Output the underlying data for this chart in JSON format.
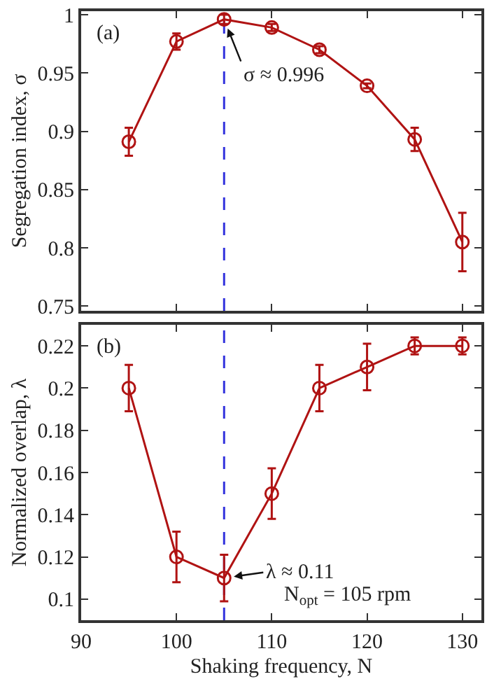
{
  "chart_data": [
    {
      "type": "line",
      "ylabel": "Segregation index, σ",
      "x": [
        95,
        100,
        105,
        110,
        115,
        120,
        125,
        130
      ],
      "series": [
        {
          "color": "#b01313",
          "values": [
            0.891,
            0.977,
            0.996,
            0.989,
            0.97,
            0.939,
            0.893,
            0.805
          ],
          "errors": [
            0.012,
            0.007,
            0.004,
            0.003,
            0.003,
            0.002,
            0.01,
            0.025
          ]
        }
      ],
      "xlim": [
        90,
        132
      ],
      "xticks": [
        90,
        100,
        110,
        120,
        130
      ],
      "ylim": [
        0.746,
        1.003
      ],
      "yticks": [
        0.75,
        0.8,
        0.85,
        0.9,
        0.95,
        1
      ],
      "tick_labels": "y",
      "marker": "circle",
      "line_style": "solid",
      "grid": false,
      "ref_lines": [
        {
          "axis": "x",
          "value": 105,
          "label": null,
          "color": "#3333dd",
          "line_style": "dashed"
        }
      ],
      "annotations": [
        "(a)",
        {
          "text": "σ ≈ 0.996",
          "x": 105,
          "y": 0.996
        }
      ]
    },
    {
      "type": "line",
      "xlabel": "Shaking frequency, N",
      "ylabel": "Normalized overlap, λ",
      "x": [
        95,
        100,
        105,
        110,
        115,
        120,
        125,
        130
      ],
      "series": [
        {
          "color": "#b01313",
          "values": [
            0.2,
            0.12,
            0.11,
            0.15,
            0.2,
            0.21,
            0.22,
            0.22
          ],
          "errors": [
            0.011,
            0.012,
            0.011,
            0.012,
            0.011,
            0.011,
            0.004,
            0.004
          ]
        }
      ],
      "xlim": [
        90,
        132
      ],
      "xticks": [
        90,
        100,
        110,
        120,
        130
      ],
      "ylim": [
        0.09,
        0.23
      ],
      "yticks": [
        0.1,
        0.12,
        0.14,
        0.16,
        0.18,
        0.2,
        0.22
      ],
      "marker": "circle",
      "line_style": "solid",
      "grid": false,
      "ref_lines": [
        {
          "axis": "x",
          "value": 105,
          "label": null,
          "color": "#3333dd",
          "line_style": "dashed"
        }
      ],
      "annotations": [
        "(b)",
        {
          "text": "λ ≈ 0.11",
          "x": 105,
          "y": 0.11
        },
        "N$_{opt}$ = 105 rpm"
      ]
    }
  ]
}
